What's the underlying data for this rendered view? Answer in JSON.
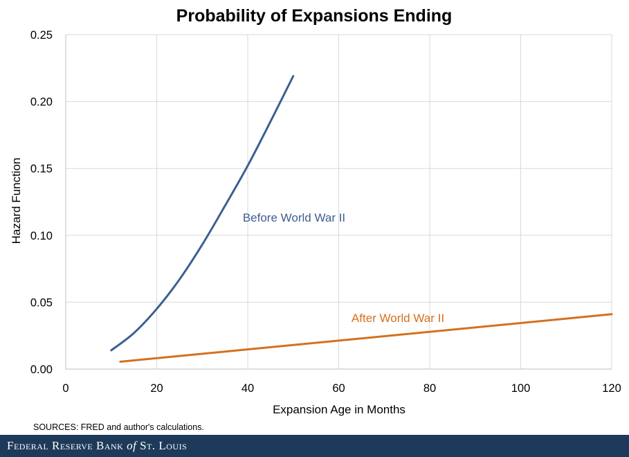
{
  "chart_data": {
    "type": "line",
    "title": "Probability of Expansions Ending",
    "xlabel": "Expansion Age in Months",
    "ylabel": "Hazard Function",
    "xlim": [
      0,
      120
    ],
    "ylim": [
      0,
      0.25
    ],
    "x_ticks": [
      0,
      20,
      40,
      60,
      80,
      100,
      120
    ],
    "y_ticks": [
      0.0,
      0.05,
      0.1,
      0.15,
      0.2,
      0.25
    ],
    "y_tick_labels": [
      "0.00",
      "0.05",
      "0.10",
      "0.15",
      "0.20",
      "0.25"
    ],
    "grid": true,
    "series": [
      {
        "name": "Before World War II",
        "color": "#3d5f8f",
        "x": [
          10,
          15,
          20,
          25,
          30,
          35,
          40,
          45,
          50
        ],
        "y": [
          0.014,
          0.027,
          0.045,
          0.067,
          0.093,
          0.122,
          0.152,
          0.185,
          0.219
        ]
      },
      {
        "name": "After World War II",
        "color": "#d4701e",
        "x": [
          12,
          120
        ],
        "y": [
          0.0055,
          0.041
        ]
      }
    ],
    "source": "SOURCES: FRED and author's calculations."
  },
  "footer": {
    "brand_prefix": "Federal Reserve Bank",
    "brand_of": "of",
    "brand_suffix": "St. Louis",
    "background": "#1e3a5a"
  }
}
